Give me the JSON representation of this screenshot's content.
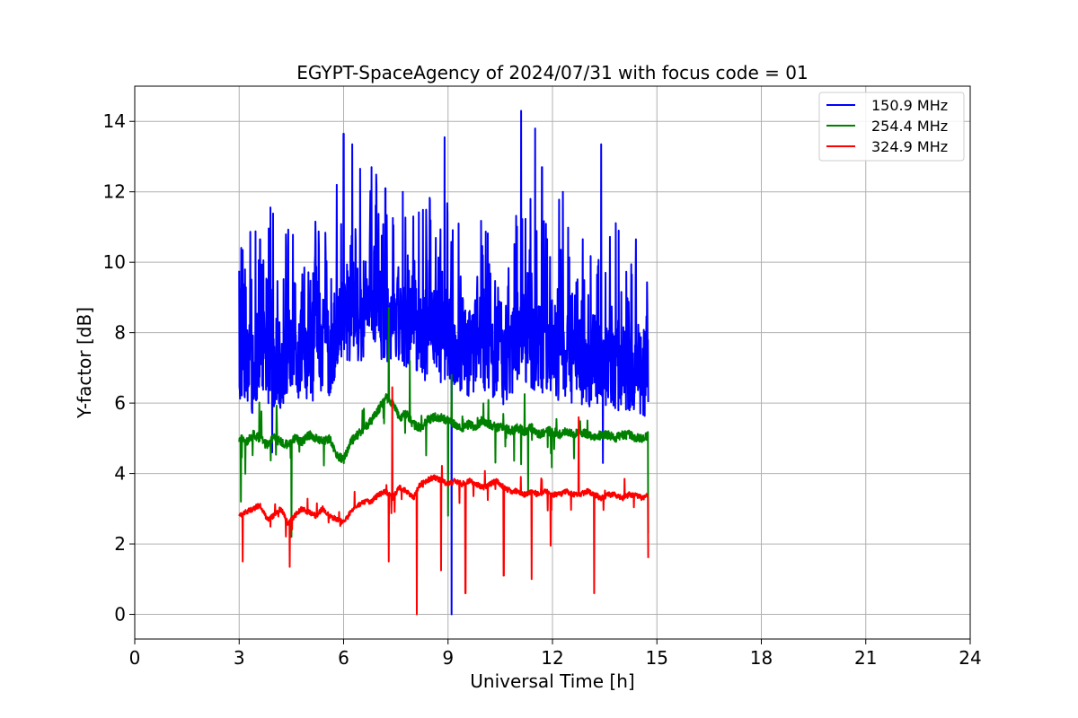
{
  "chart_data": {
    "type": "line",
    "title": "EGYPT-SpaceAgency of 2024/07/31 with focus code = 01",
    "xlabel": "Universal Time [h]",
    "ylabel": "Y-factor [dB]",
    "xlim": [
      0,
      24
    ],
    "ylim": [
      -0.7,
      15
    ],
    "xticks": [
      0,
      3,
      6,
      9,
      12,
      15,
      18,
      21,
      24
    ],
    "yticks": [
      0,
      2,
      4,
      6,
      8,
      10,
      12,
      14
    ],
    "grid": true,
    "legend_position": "top-right",
    "series": [
      {
        "name": "150.9 MHz",
        "color": "#0000ff",
        "x": [
          3.0,
          3.1,
          3.2,
          3.3,
          3.4,
          3.5,
          3.6,
          3.7,
          3.8,
          3.9,
          4.0,
          4.2,
          4.4,
          4.6,
          4.8,
          5.0,
          5.2,
          5.4,
          5.6,
          5.8,
          6.0,
          6.2,
          6.4,
          6.6,
          6.8,
          7.0,
          7.2,
          7.4,
          7.6,
          7.8,
          8.0,
          8.2,
          8.4,
          8.6,
          8.8,
          9.0,
          9.1,
          9.2,
          9.4,
          9.6,
          9.8,
          10.0,
          10.2,
          10.4,
          10.6,
          10.8,
          11.0,
          11.2,
          11.4,
          11.6,
          11.8,
          12.0,
          12.2,
          12.4,
          12.6,
          12.8,
          13.0,
          13.2,
          13.4,
          13.6,
          13.8,
          14.0,
          14.2,
          14.4,
          14.6,
          14.75
        ],
        "values": [
          6.8,
          7.5,
          6.9,
          7.8,
          6.6,
          7.3,
          7.0,
          7.6,
          6.9,
          7.4,
          7.2,
          7.0,
          7.5,
          7.1,
          7.6,
          7.3,
          7.4,
          7.1,
          7.5,
          8.0,
          8.3,
          8.5,
          8.2,
          8.6,
          8.4,
          8.7,
          8.3,
          8.6,
          8.5,
          8.2,
          8.4,
          8.0,
          7.9,
          8.2,
          7.8,
          8.1,
          7.7,
          7.5,
          7.6,
          7.4,
          7.7,
          7.5,
          7.3,
          7.4,
          7.2,
          7.5,
          7.8,
          7.9,
          7.6,
          7.7,
          7.5,
          7.3,
          7.4,
          7.2,
          7.1,
          7.3,
          7.0,
          7.2,
          7.1,
          7.3,
          7.0,
          7.1,
          6.9,
          7.0,
          6.9,
          6.8
        ]
      },
      {
        "name": "254.4 MHz",
        "color": "#008000",
        "x": [
          3.0,
          3.2,
          3.4,
          3.6,
          3.8,
          4.0,
          4.2,
          4.4,
          4.6,
          4.8,
          5.0,
          5.2,
          5.4,
          5.6,
          5.8,
          6.0,
          6.2,
          6.4,
          6.6,
          6.8,
          7.0,
          7.2,
          7.4,
          7.6,
          7.8,
          8.0,
          8.2,
          8.4,
          8.6,
          8.8,
          9.0,
          9.2,
          9.4,
          9.6,
          9.8,
          10.0,
          10.2,
          10.4,
          10.6,
          10.8,
          11.0,
          11.2,
          11.4,
          11.6,
          11.8,
          12.0,
          12.2,
          12.4,
          12.6,
          12.8,
          13.0,
          13.2,
          13.4,
          13.6,
          13.8,
          14.0,
          14.2,
          14.4,
          14.6,
          14.75
        ],
        "values": [
          5.0,
          4.9,
          5.1,
          5.0,
          4.8,
          5.0,
          4.9,
          4.8,
          5.0,
          4.9,
          5.1,
          5.0,
          4.9,
          5.0,
          4.5,
          4.4,
          4.9,
          5.1,
          5.3,
          5.5,
          5.8,
          6.2,
          6.0,
          5.6,
          5.7,
          5.4,
          5.3,
          5.5,
          5.6,
          5.6,
          5.5,
          5.4,
          5.3,
          5.4,
          5.3,
          5.5,
          5.4,
          5.3,
          5.3,
          5.2,
          5.3,
          5.2,
          5.3,
          5.1,
          5.2,
          5.2,
          5.1,
          5.2,
          5.1,
          5.2,
          5.1,
          5.0,
          5.1,
          5.1,
          5.0,
          5.1,
          5.1,
          5.0,
          5.0,
          5.1
        ]
      },
      {
        "name": "324.9 MHz",
        "color": "#ff0000",
        "x": [
          3.0,
          3.2,
          3.4,
          3.6,
          3.8,
          4.0,
          4.2,
          4.4,
          4.6,
          4.8,
          5.0,
          5.2,
          5.4,
          5.6,
          5.8,
          6.0,
          6.2,
          6.4,
          6.6,
          6.8,
          7.0,
          7.2,
          7.4,
          7.6,
          7.8,
          8.0,
          8.2,
          8.4,
          8.6,
          8.8,
          9.0,
          9.2,
          9.4,
          9.6,
          9.8,
          10.0,
          10.2,
          10.4,
          10.6,
          10.8,
          11.0,
          11.2,
          11.4,
          11.6,
          11.8,
          12.0,
          12.2,
          12.4,
          12.6,
          12.8,
          13.0,
          13.2,
          13.4,
          13.6,
          13.8,
          14.0,
          14.2,
          14.4,
          14.6,
          14.75
        ],
        "values": [
          2.8,
          2.9,
          3.0,
          3.1,
          2.7,
          2.8,
          3.0,
          2.6,
          2.8,
          3.0,
          2.9,
          2.8,
          3.0,
          2.8,
          2.7,
          2.6,
          2.9,
          3.1,
          3.2,
          3.2,
          3.4,
          3.5,
          3.3,
          3.6,
          3.5,
          3.3,
          3.7,
          3.8,
          3.9,
          3.8,
          3.7,
          3.8,
          3.7,
          3.8,
          3.7,
          3.6,
          3.7,
          3.8,
          3.6,
          3.5,
          3.5,
          3.4,
          3.5,
          3.4,
          3.5,
          3.4,
          3.4,
          3.5,
          3.4,
          3.4,
          3.5,
          3.4,
          3.3,
          3.4,
          3.4,
          3.3,
          3.4,
          3.4,
          3.3,
          3.4
        ]
      }
    ],
    "dips": [
      {
        "series": 0,
        "x": 9.1,
        "value": 0.0
      },
      {
        "series": 0,
        "x": 3.95,
        "value": 4.6
      },
      {
        "series": 0,
        "x": 13.45,
        "value": 4.3
      },
      {
        "series": 1,
        "x": 3.05,
        "value": 3.2
      },
      {
        "series": 1,
        "x": 4.5,
        "value": 2.2
      },
      {
        "series": 1,
        "x": 9.0,
        "value": 2.8
      },
      {
        "series": 1,
        "x": 11.3,
        "value": 3.5
      },
      {
        "series": 1,
        "x": 14.75,
        "value": 2.3
      },
      {
        "series": 2,
        "x": 3.1,
        "value": 1.5
      },
      {
        "series": 2,
        "x": 4.45,
        "value": 1.35
      },
      {
        "series": 2,
        "x": 7.3,
        "value": 1.5
      },
      {
        "series": 2,
        "x": 8.1,
        "value": 0.0
      },
      {
        "series": 2,
        "x": 8.8,
        "value": 1.25
      },
      {
        "series": 2,
        "x": 9.5,
        "value": 0.6
      },
      {
        "series": 2,
        "x": 10.6,
        "value": 1.1
      },
      {
        "series": 2,
        "x": 11.4,
        "value": 1.0
      },
      {
        "series": 2,
        "x": 11.95,
        "value": 1.95
      },
      {
        "series": 2,
        "x": 13.2,
        "value": 0.6
      },
      {
        "series": 2,
        "x": 14.75,
        "value": 1.6
      }
    ],
    "peaks": [
      {
        "series": 0,
        "x": 3.1,
        "value": 10.35
      },
      {
        "series": 0,
        "x": 3.6,
        "value": 10.65
      },
      {
        "series": 0,
        "x": 4.4,
        "value": 10.4
      },
      {
        "series": 0,
        "x": 5.2,
        "value": 10.5
      },
      {
        "series": 0,
        "x": 5.8,
        "value": 12.2
      },
      {
        "series": 0,
        "x": 6.0,
        "value": 13.65
      },
      {
        "series": 0,
        "x": 6.25,
        "value": 13.35
      },
      {
        "series": 0,
        "x": 6.8,
        "value": 12.7
      },
      {
        "series": 0,
        "x": 7.2,
        "value": 12.1
      },
      {
        "series": 0,
        "x": 7.7,
        "value": 12.0
      },
      {
        "series": 0,
        "x": 8.0,
        "value": 11.3
      },
      {
        "series": 0,
        "x": 8.9,
        "value": 13.55
      },
      {
        "series": 0,
        "x": 9.3,
        "value": 11.1
      },
      {
        "series": 0,
        "x": 10.0,
        "value": 10.2
      },
      {
        "series": 0,
        "x": 11.1,
        "value": 14.3
      },
      {
        "series": 0,
        "x": 11.5,
        "value": 13.8
      },
      {
        "series": 0,
        "x": 11.7,
        "value": 12.7
      },
      {
        "series": 0,
        "x": 12.3,
        "value": 12.0
      },
      {
        "series": 0,
        "x": 13.4,
        "value": 13.35
      },
      {
        "series": 0,
        "x": 13.9,
        "value": 10.9
      },
      {
        "series": 0,
        "x": 14.4,
        "value": 10.65
      },
      {
        "series": 1,
        "x": 7.3,
        "value": 8.7
      },
      {
        "series": 1,
        "x": 7.9,
        "value": 7.2
      },
      {
        "series": 1,
        "x": 9.1,
        "value": 6.8
      },
      {
        "series": 2,
        "x": 7.4,
        "value": 6.45
      },
      {
        "series": 2,
        "x": 12.75,
        "value": 5.6
      }
    ]
  }
}
